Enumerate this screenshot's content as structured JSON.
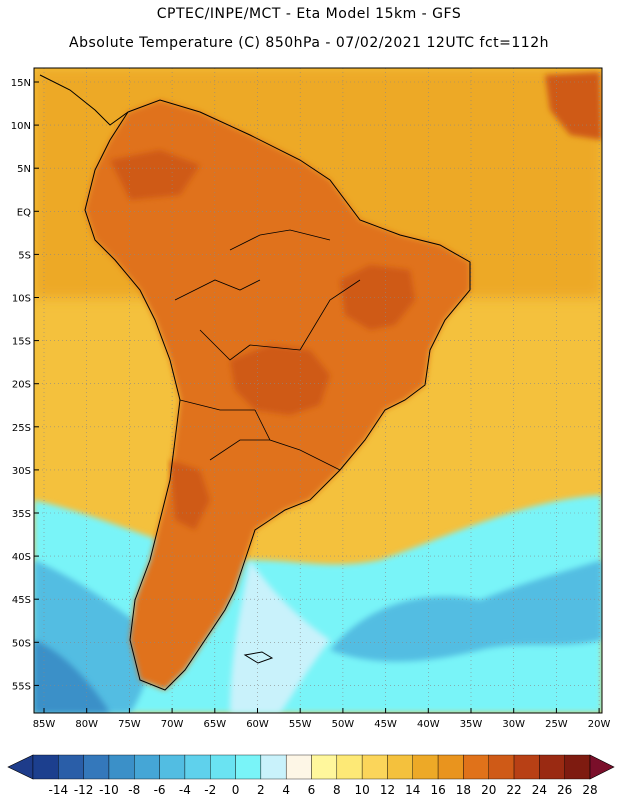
{
  "header": {
    "line1": "CPTEC/INPE/MCT  -   Eta Model 15km  - GFS",
    "line2": "Absolute Temperature (C) 850hPa - 07/02/2021 12UTC fct=112h"
  },
  "axes": {
    "lat_labels": [
      "15N",
      "10N",
      "5N",
      "EQ",
      "5S",
      "10S",
      "15S",
      "20S",
      "25S",
      "30S",
      "35S",
      "40S",
      "45S",
      "50S",
      "55S"
    ],
    "lon_labels": [
      "85W",
      "80W",
      "75W",
      "70W",
      "65W",
      "60W",
      "55W",
      "50W",
      "45W",
      "40W",
      "35W",
      "30W",
      "25W",
      "20W"
    ]
  },
  "colorbar": {
    "labels": [
      "-14",
      "-12",
      "-10",
      "-8",
      "-6",
      "-4",
      "-2",
      "0",
      "2",
      "4",
      "6",
      "8",
      "10",
      "12",
      "14",
      "16",
      "18",
      "20",
      "22",
      "24",
      "26",
      "28"
    ],
    "colors": [
      "#1c3f8e",
      "#2a5ea8",
      "#3478bb",
      "#3b90c8",
      "#45a6d6",
      "#52bde2",
      "#5fd1ec",
      "#6ae3f2",
      "#79f4f8",
      "#c9f2fb",
      "#fdf6e6",
      "#fff79c",
      "#fde976",
      "#fbd55a",
      "#f4c13d",
      "#eda927",
      "#e9941e",
      "#e0721a",
      "#cf5a17",
      "#b84015",
      "#9a2a12",
      "#7e1b10"
    ],
    "low_color": "#1e3c8a",
    "high_color": "#7a0f2a"
  },
  "fields": {
    "ocean_north": "#eda927",
    "ocean_mid": "#f4c13d",
    "warm_land": "#e0721a",
    "hot_core": "#cf5a17",
    "cool_sea": "#79f4f8",
    "cold_sea": "#52bde2",
    "coldest_sea": "#3b90c8"
  }
}
